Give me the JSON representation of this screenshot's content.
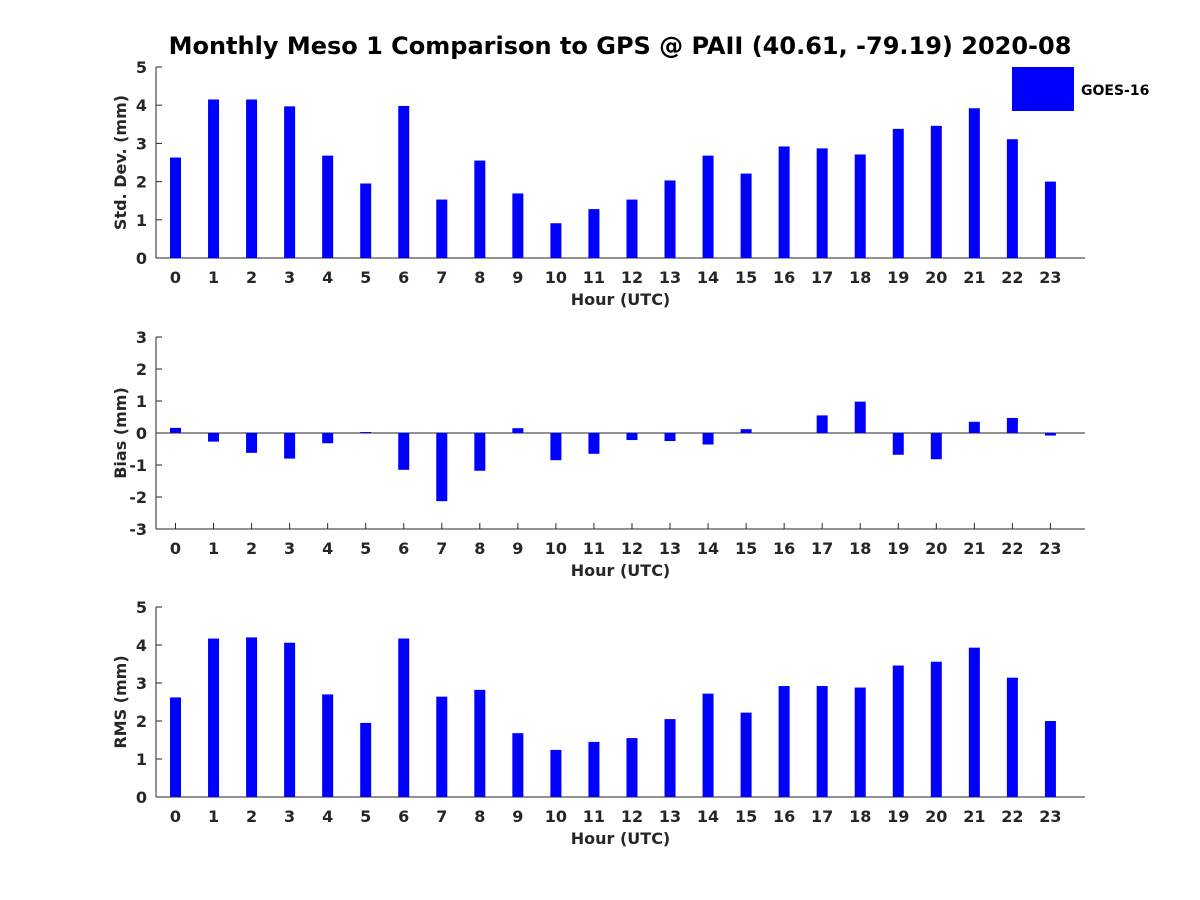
{
  "figure_title": "Monthly Meso 1 Comparison to GPS @ PAII (40.61, -79.19) 2020-08",
  "legend": {
    "label": "GOES-16",
    "color": "#0000ff",
    "placement": "top-right"
  },
  "chart_data": [
    {
      "type": "bar",
      "name": "std-dev",
      "xlabel": "Hour (UTC)",
      "ylabel": "Std. Dev. (mm)",
      "ylim": [
        0,
        5
      ],
      "yticks": [
        "0",
        "1",
        "2",
        "3",
        "4",
        "5"
      ],
      "categories": [
        "0",
        "1",
        "2",
        "3",
        "4",
        "5",
        "6",
        "7",
        "8",
        "9",
        "10",
        "11",
        "12",
        "13",
        "14",
        "15",
        "16",
        "17",
        "18",
        "19",
        "20",
        "21",
        "22",
        "23"
      ],
      "series": [
        {
          "name": "GOES-16",
          "color": "#0000ff",
          "values": [
            2.63,
            4.15,
            4.15,
            3.97,
            2.68,
            1.95,
            3.98,
            1.53,
            2.55,
            1.69,
            0.91,
            1.28,
            1.53,
            2.03,
            2.68,
            2.21,
            2.92,
            2.87,
            2.71,
            3.38,
            3.46,
            3.92,
            3.11,
            2.0
          ]
        }
      ]
    },
    {
      "type": "bar",
      "name": "bias",
      "xlabel": "Hour (UTC)",
      "ylabel": "Bias (mm)",
      "ylim": [
        -3,
        3
      ],
      "yticks": [
        "-3",
        "-2",
        "-1",
        "0",
        "1",
        "2",
        "3"
      ],
      "categories": [
        "0",
        "1",
        "2",
        "3",
        "4",
        "5",
        "6",
        "7",
        "8",
        "9",
        "10",
        "11",
        "12",
        "13",
        "14",
        "15",
        "16",
        "17",
        "18",
        "19",
        "20",
        "21",
        "22",
        "23"
      ],
      "series": [
        {
          "name": "GOES-16",
          "color": "#0000ff",
          "values": [
            0.16,
            -0.27,
            -0.62,
            -0.8,
            -0.32,
            0.03,
            -1.15,
            -2.13,
            -1.18,
            0.15,
            -0.85,
            -0.65,
            -0.22,
            -0.25,
            -0.36,
            0.12,
            0.0,
            0.55,
            0.98,
            -0.68,
            -0.82,
            0.35,
            0.47,
            -0.08
          ]
        }
      ]
    },
    {
      "type": "bar",
      "name": "rms",
      "xlabel": "Hour (UTC)",
      "ylabel": "RMS (mm)",
      "ylim": [
        0,
        5
      ],
      "yticks": [
        "0",
        "1",
        "2",
        "3",
        "4",
        "5"
      ],
      "categories": [
        "0",
        "1",
        "2",
        "3",
        "4",
        "5",
        "6",
        "7",
        "8",
        "9",
        "10",
        "11",
        "12",
        "13",
        "14",
        "15",
        "16",
        "17",
        "18",
        "19",
        "20",
        "21",
        "22",
        "23"
      ],
      "series": [
        {
          "name": "GOES-16",
          "color": "#0000ff",
          "values": [
            2.62,
            4.17,
            4.2,
            4.06,
            2.7,
            1.95,
            4.17,
            2.64,
            2.82,
            1.68,
            1.24,
            1.45,
            1.55,
            2.05,
            2.72,
            2.22,
            2.92,
            2.92,
            2.88,
            3.46,
            3.56,
            3.93,
            3.14,
            2.0
          ]
        }
      ]
    }
  ]
}
